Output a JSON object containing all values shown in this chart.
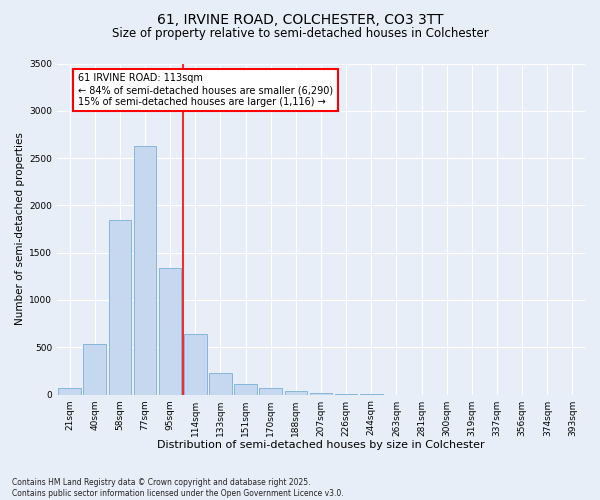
{
  "title_line1": "61, IRVINE ROAD, COLCHESTER, CO3 3TT",
  "title_line2": "Size of property relative to semi-detached houses in Colchester",
  "xlabel": "Distribution of semi-detached houses by size in Colchester",
  "ylabel": "Number of semi-detached properties",
  "footnote": "Contains HM Land Registry data © Crown copyright and database right 2025.\nContains public sector information licensed under the Open Government Licence v3.0.",
  "bar_labels": [
    "21sqm",
    "40sqm",
    "58sqm",
    "77sqm",
    "95sqm",
    "114sqm",
    "133sqm",
    "151sqm",
    "170sqm",
    "188sqm",
    "207sqm",
    "226sqm",
    "244sqm",
    "263sqm",
    "281sqm",
    "300sqm",
    "319sqm",
    "337sqm",
    "356sqm",
    "374sqm",
    "393sqm"
  ],
  "bar_values": [
    75,
    530,
    1850,
    2630,
    1340,
    640,
    230,
    115,
    70,
    40,
    20,
    8,
    3,
    1,
    0,
    0,
    0,
    0,
    0,
    0,
    0
  ],
  "bar_color": "#c5d8f0",
  "bar_edge_color": "#7bafd4",
  "vline_x_index": 4.5,
  "vline_color": "red",
  "annotation_text": "61 IRVINE ROAD: 113sqm\n← 84% of semi-detached houses are smaller (6,290)\n15% of semi-detached houses are larger (1,116) →",
  "annotation_box_color": "white",
  "annotation_box_edge_color": "red",
  "ylim": [
    0,
    3500
  ],
  "yticks": [
    0,
    500,
    1000,
    1500,
    2000,
    2500,
    3000,
    3500
  ],
  "bg_color": "#e8eef8",
  "plot_bg_color": "#e8eef8",
  "grid_color": "white",
  "title_fontsize": 10,
  "subtitle_fontsize": 8.5,
  "xlabel_fontsize": 8,
  "ylabel_fontsize": 7.5,
  "tick_fontsize": 6.5,
  "annotation_fontsize": 7
}
